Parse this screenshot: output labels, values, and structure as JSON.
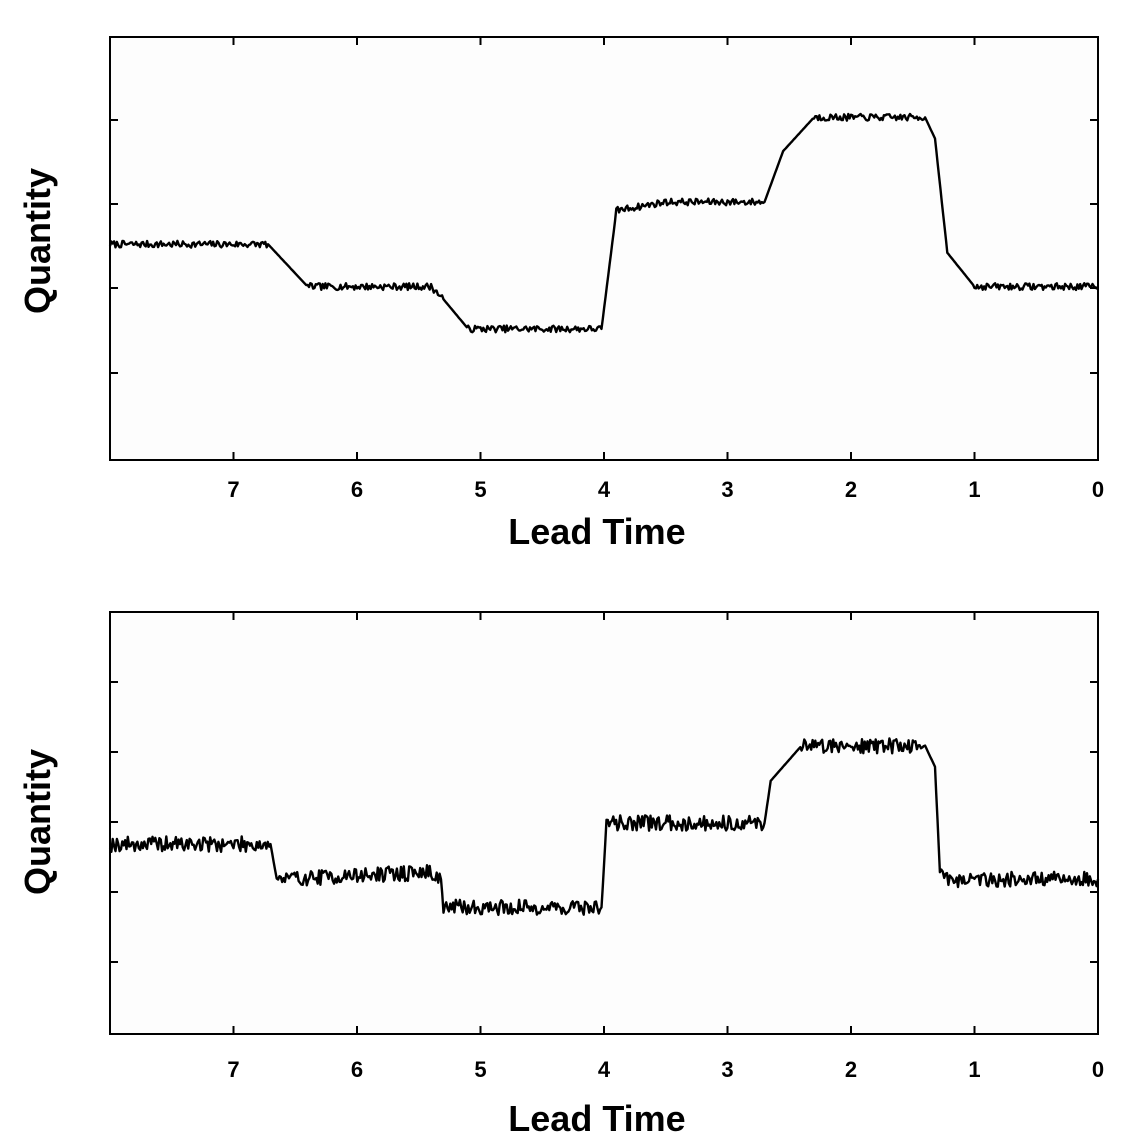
{
  "chart_data": [
    {
      "type": "line",
      "xlabel": "Lead Time",
      "ylabel": "Quantity",
      "xlim": [
        8,
        0
      ],
      "ylim": [
        0,
        5
      ],
      "x_ticks": [
        "7",
        "6",
        "5",
        "4",
        "3",
        "2",
        "1",
        "0"
      ],
      "y_ticks_labeled": false,
      "grid": false,
      "series": [
        {
          "x": [
            8,
            6.72,
            6.4,
            5.4,
            5.3,
            5.1,
            4.02,
            3.9,
            3.5,
            2.7,
            2.55,
            2.3,
            1.4,
            1.32,
            1.22,
            1.0,
            0
          ],
          "y": [
            2.55,
            2.55,
            2.05,
            2.05,
            1.9,
            1.55,
            1.55,
            2.95,
            3.05,
            3.05,
            3.65,
            4.05,
            4.05,
            3.8,
            2.45,
            2.05,
            2.05
          ]
        }
      ]
    },
    {
      "type": "line",
      "xlabel": "Lead Time",
      "ylabel": "Quantity",
      "xlim": [
        8,
        0
      ],
      "ylim": [
        0,
        6
      ],
      "x_ticks": [
        "7",
        "6",
        "5",
        "4",
        "3",
        "2",
        "1",
        "0"
      ],
      "y_ticks_labeled": false,
      "grid": false,
      "series": [
        {
          "x": [
            8,
            6.7,
            6.65,
            5.4,
            5.32,
            5.3,
            4.02,
            3.98,
            2.7,
            2.65,
            2.4,
            1.4,
            1.32,
            1.28,
            1.2,
            0
          ],
          "y": [
            2.7,
            2.7,
            2.2,
            2.3,
            2.2,
            1.8,
            1.8,
            3.0,
            3.0,
            3.6,
            4.1,
            4.1,
            3.8,
            2.3,
            2.2,
            2.2
          ]
        }
      ]
    }
  ]
}
